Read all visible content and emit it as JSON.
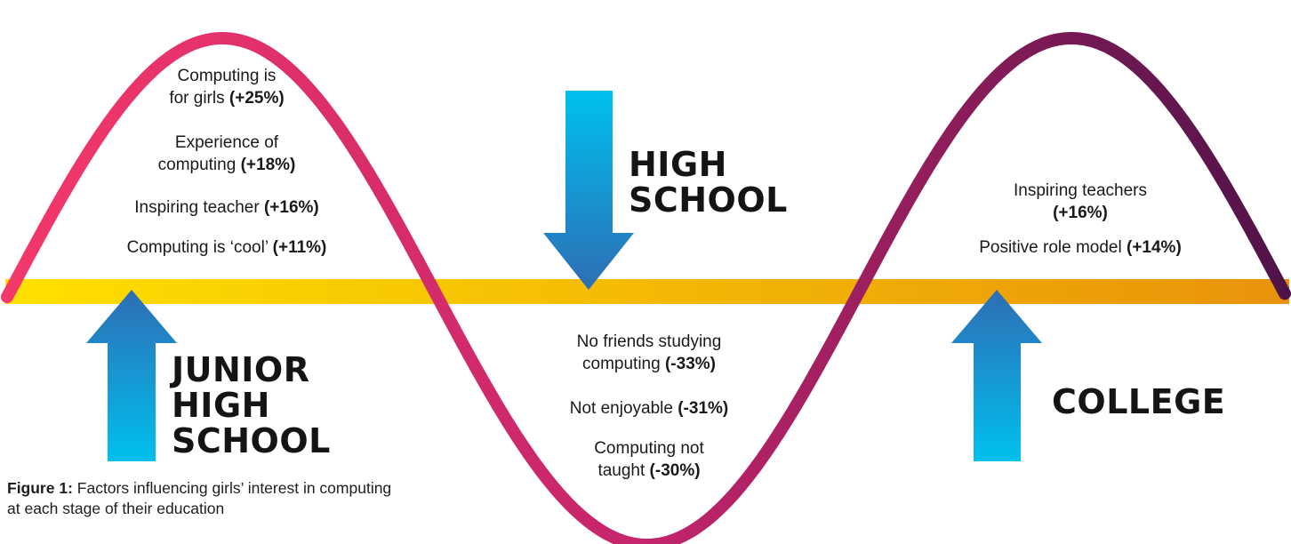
{
  "stages": {
    "junior_high": [
      "JUNIOR",
      "HIGH",
      "SCHOOL"
    ],
    "high_school": [
      "HIGH",
      "SCHOOL"
    ],
    "college": [
      "COLLEGE"
    ]
  },
  "arrows": {
    "junior_high": "up",
    "high_school": "down",
    "college": "up"
  },
  "factors": {
    "junior_high": [
      {
        "lines": [
          "Computing is",
          "for girls "
        ],
        "pct": "(+25%)"
      },
      {
        "lines": [
          "Experience of",
          "computing "
        ],
        "pct": "(+18%)"
      },
      {
        "lines": [
          "Inspiring teacher "
        ],
        "pct": "(+16%)"
      },
      {
        "lines": [
          "Computing is ‘cool’ "
        ],
        "pct": "(+11%)"
      }
    ],
    "high_school": [
      {
        "lines": [
          "No friends studying",
          "computing "
        ],
        "pct": "(-33%)"
      },
      {
        "lines": [
          "Not enjoyable "
        ],
        "pct": "(-31%)"
      },
      {
        "lines": [
          "Computing not",
          "taught "
        ],
        "pct": "(-30%)"
      }
    ],
    "college": [
      {
        "lines": [
          "Inspiring teachers",
          ""
        ],
        "pct": "(+16%)"
      },
      {
        "lines": [
          "Positive role model "
        ],
        "pct": "(+14%)"
      }
    ]
  },
  "caption": {
    "label": "Figure 1:",
    "text": " Factors influencing girls’ interest in computing at each stage of their education"
  },
  "colors": {
    "wave_start": "#f4386a",
    "wave_mid": "#c4256b",
    "wave_end": "#4e1348",
    "band_start": "#ffe000",
    "band_end": "#e8930a",
    "arrow_light": "#00c0ee",
    "arrow_dark": "#2e6db4"
  }
}
